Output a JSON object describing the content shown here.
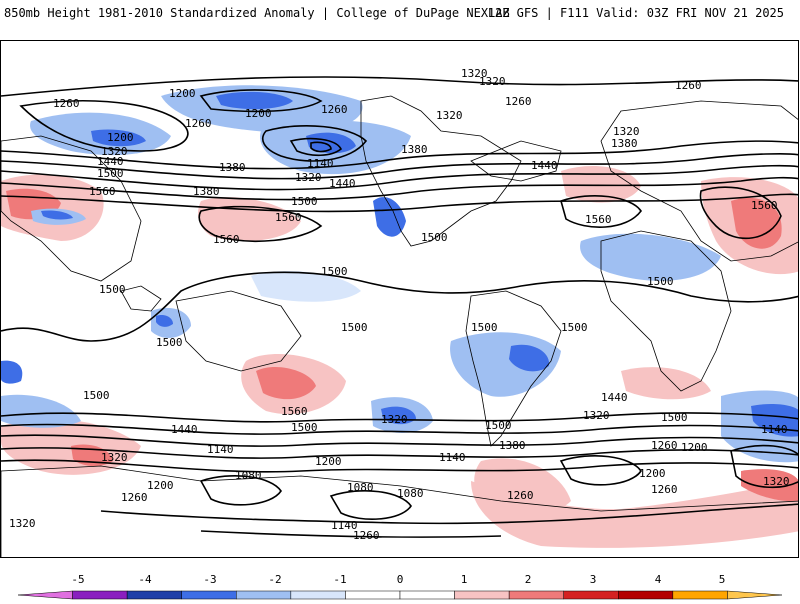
{
  "header": {
    "left_title": "850mb Height 1981-2010 Standardized Anomaly | College of DuPage NEXLAB",
    "right_title": "12Z GFS | F111 Valid: 03Z FRI NOV 21 2025"
  },
  "colorbar": {
    "tick_labels": [
      "-5",
      "-4",
      "-3",
      "-2",
      "-1",
      "0",
      "1",
      "2",
      "3",
      "4",
      "5"
    ],
    "colors": [
      "#e070e0",
      "#8a1fbf",
      "#1f3fa8",
      "#3e6ee6",
      "#9fbff2",
      "#d8e6fb",
      "#ffffff",
      "#ffffff",
      "#f7c3c3",
      "#ef7a7a",
      "#d42222",
      "#b30000",
      "#ffa500",
      "#ffc64d"
    ]
  },
  "map": {
    "contour_labels": [
      "1320",
      "1260",
      "1260",
      "1200",
      "1260",
      "1200",
      "1320",
      "1440",
      "1500",
      "1560",
      "1380",
      "1260",
      "1320",
      "1380",
      "1380",
      "1440",
      "1500",
      "1560",
      "1500",
      "1500",
      "1560",
      "1320",
      "1140",
      "1320",
      "1260",
      "1200",
      "1320",
      "1380",
      "1440",
      "1560",
      "1500",
      "1500",
      "1560",
      "1500",
      "1500",
      "1500",
      "1500",
      "1500",
      "1500",
      "1500",
      "1560",
      "1440",
      "1500",
      "1380",
      "1260",
      "1140",
      "1080",
      "1200",
      "1320",
      "1200",
      "1080",
      "1140",
      "1260",
      "1320",
      "1440",
      "1320",
      "1260",
      "1200",
      "1080",
      "1140",
      "1260",
      "1140",
      "1200",
      "1260",
      "1320",
      "1320"
    ]
  }
}
